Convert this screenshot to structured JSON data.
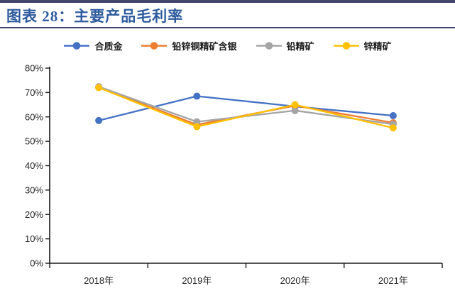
{
  "header": {
    "title": "图表 28：主要产品毛利率"
  },
  "colors": {
    "header_bar": "#43466a",
    "title_text": "#2e5b9e",
    "axis": "#1a1a1a",
    "tick_label": "#262626"
  },
  "chart_data": {
    "type": "line",
    "title": "主要产品毛利率",
    "categories": [
      "2018年",
      "2019年",
      "2020年",
      "2021年"
    ],
    "series": [
      {
        "name": "合质金",
        "color": "#4472C4",
        "values": [
          58.5,
          68.5,
          64.3,
          60.5
        ]
      },
      {
        "name": "铅锌铜精矿含银",
        "color": "#ED7D31",
        "values": [
          72.1,
          56.8,
          64.6,
          57.6
        ]
      },
      {
        "name": "铅精矿",
        "color": "#A5A5A5",
        "values": [
          72.4,
          58.0,
          62.6,
          57.0
        ]
      },
      {
        "name": "锌精矿",
        "color": "#FFC000",
        "values": [
          72.0,
          56.0,
          65.0,
          55.5
        ]
      }
    ],
    "xlabel": "",
    "ylabel": "",
    "ylim": [
      0,
      80
    ],
    "ytick_step": 10,
    "yticklabels": [
      "0%",
      "10%",
      "20%",
      "30%",
      "40%",
      "50%",
      "60%",
      "70%",
      "80%"
    ],
    "grid": false,
    "legend_position": "top",
    "marker": "circle"
  }
}
